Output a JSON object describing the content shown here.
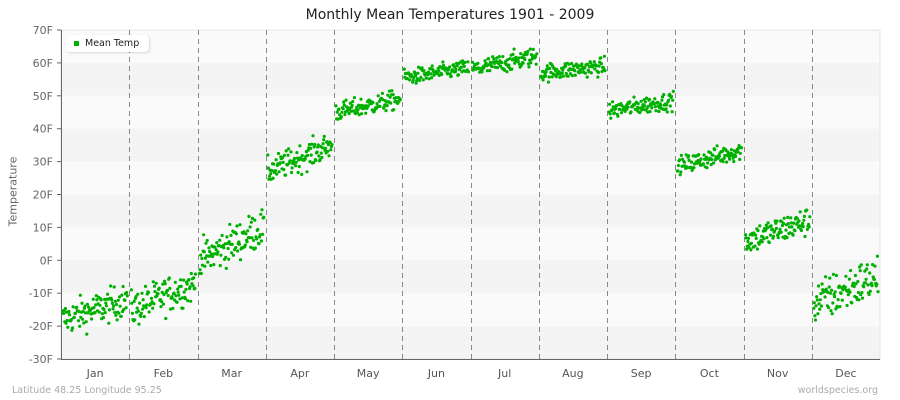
{
  "header": {
    "title": "Monthly Mean Temperatures 1901 - 2009"
  },
  "footer": {
    "location": "Latitude 48.25 Longitude 95.25",
    "source": "worldspecies.org"
  },
  "legend": {
    "label": "Mean Temp",
    "color": "#00b000"
  },
  "colors": {
    "point": "#00b000",
    "band_dark": "#f4f4f4",
    "band_light": "#fafafa",
    "axis": "#666666",
    "grid_dash": "#888888"
  },
  "chart_data": {
    "type": "scatter",
    "title": "Monthly Mean Temperatures 1901 - 2009",
    "xlabel": "",
    "ylabel": "Temperature",
    "ylim": [
      -30,
      70
    ],
    "yticks": [
      "-30F",
      "-20F",
      "-10F",
      "0F",
      "10F",
      "20F",
      "30F",
      "40F",
      "50F",
      "60F",
      "70F"
    ],
    "categories": [
      "Jan",
      "Feb",
      "Mar",
      "Apr",
      "May",
      "Jun",
      "Jul",
      "Aug",
      "Sep",
      "Oct",
      "Nov",
      "Dec"
    ],
    "years": [
      1901,
      2009
    ],
    "points_per_month": 109,
    "series": [
      {
        "name": "Mean Temp",
        "monthly_stats": [
          {
            "month": "Jan",
            "mean": -15,
            "min": -26,
            "max": -5,
            "trend": 6
          },
          {
            "month": "Feb",
            "mean": -11,
            "min": -27,
            "max": -4,
            "trend": 8
          },
          {
            "month": "Mar",
            "mean": 5,
            "min": -4,
            "max": 20,
            "trend": 10
          },
          {
            "month": "Apr",
            "mean": 31,
            "min": 22,
            "max": 39,
            "trend": 8
          },
          {
            "month": "May",
            "mean": 47,
            "min": 41,
            "max": 53,
            "trend": 4
          },
          {
            "month": "Jun",
            "mean": 57,
            "min": 52,
            "max": 62,
            "trend": 3
          },
          {
            "month": "Jul",
            "mean": 60,
            "min": 56,
            "max": 68,
            "trend": 4
          },
          {
            "month": "Aug",
            "mean": 58,
            "min": 52,
            "max": 63,
            "trend": 2
          },
          {
            "month": "Sep",
            "mean": 47,
            "min": 41,
            "max": 52,
            "trend": 3
          },
          {
            "month": "Oct",
            "mean": 31,
            "min": 26,
            "max": 38,
            "trend": 5
          },
          {
            "month": "Nov",
            "mean": 9,
            "min": 0,
            "max": 18,
            "trend": 6
          },
          {
            "month": "Dec",
            "mean": -9,
            "min": -25,
            "max": 3,
            "trend": 8
          }
        ]
      }
    ],
    "grid": {
      "horizontal_bands": true,
      "vertical_dashed_month_separators": true
    },
    "legend_position": "top-left"
  }
}
